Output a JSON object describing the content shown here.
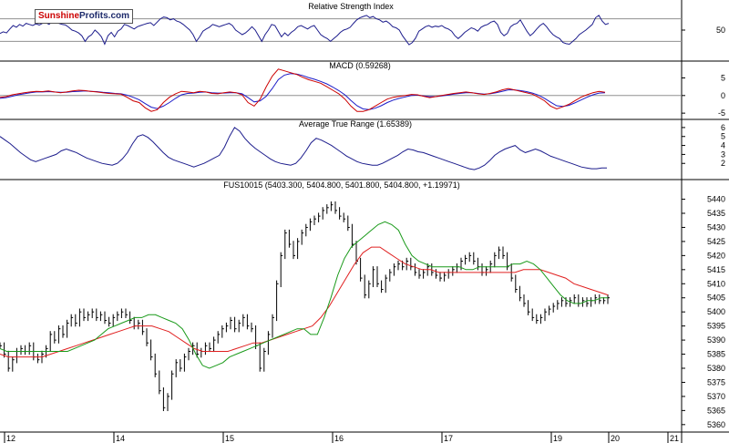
{
  "brand": {
    "name_part1": "Sunshine",
    "name_part2": "Profits.com"
  },
  "colors": {
    "price": "#000000",
    "rsi": "#1c1c8c",
    "macd": "#cc0000",
    "macd_signal": "#1c1cc8",
    "atr": "#1c1c8c",
    "ma_short": "#1a9a1a",
    "ma_long": "#e02020",
    "guide": "#909090",
    "divider": "#000000",
    "grid": "#d8d8d8"
  },
  "chart_data": [
    {
      "type": "line",
      "title": "Relative Strength Index",
      "y_tick_labels": [
        "50"
      ],
      "ylim": [
        0,
        100
      ],
      "reference_lines": [
        70,
        30
      ],
      "series": [
        {
          "values": [
            44,
            47,
            45,
            52,
            58,
            55,
            60,
            57,
            62,
            60,
            58,
            61,
            59,
            62,
            63,
            60,
            66,
            64,
            62,
            60,
            59,
            55,
            50,
            48,
            45,
            40,
            30,
            38,
            42,
            50,
            45,
            38,
            25,
            40,
            46,
            38,
            48,
            52,
            60,
            58,
            55,
            52,
            56,
            58,
            60,
            62,
            63,
            58,
            64,
            70,
            73,
            72,
            68,
            70,
            66,
            64,
            60,
            55,
            50,
            42,
            30,
            38,
            48,
            52,
            55,
            60,
            58,
            56,
            58,
            60,
            62,
            58,
            50,
            46,
            42,
            45,
            50,
            56,
            50,
            40,
            30,
            42,
            50,
            60,
            58,
            48,
            38,
            45,
            40,
            46,
            50,
            56,
            58,
            55,
            52,
            56,
            58,
            50,
            42,
            38,
            35,
            30,
            35,
            40,
            46,
            50,
            52,
            55,
            62,
            68,
            72,
            74,
            76,
            72,
            74,
            70,
            68,
            64,
            66,
            62,
            56,
            54,
            50,
            40,
            32,
            24,
            28,
            36,
            48,
            52,
            56,
            58,
            55,
            57,
            56,
            58,
            54,
            52,
            48,
            40,
            35,
            40,
            46,
            50,
            54,
            52,
            48,
            55,
            58,
            60,
            64,
            66,
            60,
            46,
            40,
            44,
            56,
            60,
            62,
            68,
            58,
            48,
            40,
            45,
            52,
            58,
            62,
            56,
            48,
            42,
            38,
            35,
            28,
            26,
            25,
            30,
            35,
            42,
            46,
            50,
            55,
            60,
            72,
            76,
            66,
            60,
            62
          ]
        }
      ]
    },
    {
      "type": "line",
      "title": "MACD (0.59268)",
      "y_tick_labels": [
        "5",
        "0",
        "-5"
      ],
      "ylim": [
        -6,
        9
      ],
      "series": [
        {
          "values": [
            -0.5,
            -0.3,
            0.2,
            0.5,
            0.8,
            1.0,
            1.2,
            1.1,
            1.3,
            1.0,
            0.8,
            1.0,
            1.3,
            1.5,
            1.4,
            1.2,
            1.0,
            0.8,
            0.6,
            0.5,
            0.4,
            -0.5,
            -1.5,
            -2.0,
            -3.5,
            -4.5,
            -4.0,
            -2.0,
            -0.5,
            0.5,
            1.2,
            1.0,
            0.8,
            1.2,
            1.0,
            0.6,
            0.5,
            0.8,
            1.0,
            0.8,
            0.2,
            -2.0,
            -3.0,
            -1.0,
            2.5,
            5.5,
            7.5,
            7.0,
            6.5,
            6.0,
            5.2,
            4.5,
            4.0,
            3.5,
            2.5,
            1.5,
            0.5,
            -1.0,
            -3.0,
            -4.5,
            -4.5,
            -4.0,
            -3.0,
            -2.0,
            -1.0,
            -0.5,
            -0.2,
            0.0,
            0.3,
            0.2,
            -0.2,
            -0.6,
            -0.3,
            0.0,
            0.3,
            0.6,
            0.8,
            1.0,
            0.8,
            0.5,
            0.3,
            0.6,
            1.0,
            1.6,
            2.0,
            1.6,
            1.2,
            0.8,
            0.4,
            -0.5,
            -1.5,
            -3.0,
            -3.8,
            -3.2,
            -2.5,
            -1.5,
            -0.5,
            0.2,
            0.8,
            1.2,
            0.9
          ]
        },
        {
          "values": [
            -0.8,
            -0.6,
            -0.2,
            0.2,
            0.5,
            0.8,
            1.0,
            1.0,
            1.1,
            1.0,
            0.9,
            0.9,
            1.1,
            1.2,
            1.3,
            1.2,
            1.1,
            0.9,
            0.8,
            0.6,
            0.5,
            0.1,
            -0.5,
            -1.2,
            -2.3,
            -3.3,
            -3.7,
            -3.0,
            -2.0,
            -0.8,
            0.2,
            0.6,
            0.7,
            0.9,
            1.0,
            0.8,
            0.7,
            0.7,
            0.8,
            0.8,
            0.5,
            -0.6,
            -1.8,
            -1.5,
            -0.2,
            2.0,
            4.5,
            5.8,
            6.2,
            6.1,
            5.7,
            5.1,
            4.6,
            4.0,
            3.3,
            2.4,
            1.4,
            0.2,
            -1.4,
            -2.9,
            -3.8,
            -4.0,
            -3.6,
            -2.9,
            -2.0,
            -1.3,
            -0.8,
            -0.4,
            0.0,
            0.1,
            -0.1,
            -0.3,
            -0.3,
            -0.1,
            0.1,
            0.4,
            0.6,
            0.8,
            0.8,
            0.6,
            0.4,
            0.5,
            0.8,
            1.2,
            1.6,
            1.6,
            1.4,
            1.1,
            0.7,
            0.1,
            -0.8,
            -1.9,
            -2.9,
            -3.1,
            -2.8,
            -2.1,
            -1.3,
            -0.5,
            0.2,
            0.7,
            0.8
          ]
        }
      ]
    },
    {
      "type": "line",
      "title": "Average True Range (1.65389)",
      "y_tick_labels": [
        "6",
        "5",
        "4",
        "3",
        "2"
      ],
      "ylim": [
        0.5,
        6.6
      ],
      "series": [
        {
          "values": [
            5.0,
            4.6,
            4.2,
            3.7,
            3.2,
            2.8,
            2.4,
            2.2,
            2.4,
            2.6,
            2.8,
            3.0,
            3.4,
            3.6,
            3.4,
            3.2,
            2.9,
            2.6,
            2.4,
            2.2,
            2.0,
            1.9,
            1.8,
            2.0,
            2.5,
            3.2,
            4.2,
            5.0,
            5.2,
            4.9,
            4.4,
            3.8,
            3.2,
            2.7,
            2.4,
            2.2,
            2.0,
            1.8,
            1.6,
            1.8,
            2.0,
            2.3,
            2.6,
            2.9,
            3.8,
            5.0,
            6.0,
            5.6,
            4.8,
            4.2,
            3.7,
            3.3,
            2.9,
            2.5,
            2.2,
            2.0,
            1.9,
            1.8,
            2.0,
            2.6,
            3.4,
            4.3,
            4.8,
            4.6,
            4.3,
            4.0,
            3.6,
            3.2,
            2.8,
            2.5,
            2.2,
            2.0,
            1.9,
            1.8,
            1.8,
            2.0,
            2.3,
            2.6,
            2.9,
            3.3,
            3.6,
            3.5,
            3.3,
            3.2,
            3.0,
            2.8,
            2.6,
            2.4,
            2.2,
            2.0,
            1.8,
            1.6,
            1.4,
            1.3,
            1.5,
            1.8,
            2.3,
            2.9,
            3.3,
            3.6,
            3.8,
            4.0,
            3.5,
            3.2,
            3.4,
            3.6,
            3.4,
            3.1,
            2.8,
            2.6,
            2.4,
            2.2,
            2.0,
            1.8,
            1.6,
            1.5,
            1.4,
            1.4,
            1.5,
            1.5
          ]
        }
      ]
    },
    {
      "type": "line",
      "title": "FUS10015 (5403.300, 5404.800, 5401.800, 5404.800, +1.19971)",
      "y_tick_labels": [
        "5440",
        "5435",
        "5430",
        "5425",
        "5420",
        "5415",
        "5410",
        "5405",
        "5400",
        "5395",
        "5390",
        "5385",
        "5380",
        "5375",
        "5370",
        "5365",
        "5360"
      ],
      "x_tick_labels": [
        "12",
        "14",
        "15",
        "16",
        "17",
        "19",
        "20",
        "21"
      ],
      "x_tick_positions": [
        0,
        2,
        3,
        4,
        5,
        6,
        6.5,
        7.1
      ],
      "xlim": [
        0,
        7.3
      ],
      "ylim": [
        5358,
        5446
      ],
      "series": [
        {
          "values": [
            5388,
            5385,
            5380,
            5383,
            5386,
            5387,
            5386,
            5388,
            5384,
            5383,
            5385,
            5387,
            5392,
            5390,
            5394,
            5392,
            5396,
            5398,
            5396,
            5400,
            5398,
            5399,
            5400,
            5398,
            5399,
            5397,
            5396,
            5398,
            5399,
            5400,
            5399,
            5397,
            5395,
            5396,
            5393,
            5389,
            5384,
            5378,
            5372,
            5366,
            5370,
            5378,
            5382,
            5380,
            5384,
            5386,
            5388,
            5385,
            5386,
            5388,
            5387,
            5390,
            5392,
            5394,
            5395,
            5397,
            5394,
            5396,
            5398,
            5395,
            5394,
            5388,
            5380,
            5386,
            5392,
            5398,
            5410,
            5420,
            5428,
            5424,
            5420,
            5425,
            5428,
            5430,
            5432,
            5433,
            5434,
            5436,
            5437,
            5438,
            5436,
            5434,
            5433,
            5430,
            5424,
            5418,
            5412,
            5406,
            5410,
            5415,
            5410,
            5408,
            5412,
            5414,
            5416,
            5417,
            5416,
            5418,
            5416,
            5414,
            5413,
            5414,
            5416,
            5414,
            5413,
            5412,
            5413,
            5414,
            5415,
            5416,
            5418,
            5419,
            5420,
            5418,
            5416,
            5414,
            5415,
            5417,
            5420,
            5422,
            5420,
            5416,
            5412,
            5408,
            5405,
            5403,
            5400,
            5398,
            5397,
            5398,
            5400,
            5401,
            5402,
            5403,
            5404,
            5403,
            5404,
            5405,
            5403,
            5404,
            5403,
            5404,
            5405,
            5404,
            5404,
            5405
          ]
        },
        {
          "values": [
            5387,
            5386,
            5386,
            5386,
            5386,
            5386,
            5386,
            5386,
            5386,
            5386,
            5386,
            5387,
            5388,
            5389,
            5390,
            5392,
            5394,
            5395,
            5396,
            5397,
            5398,
            5398,
            5399,
            5399,
            5398,
            5397,
            5396,
            5394,
            5390,
            5385,
            5381,
            5380,
            5381,
            5382,
            5384,
            5385,
            5386,
            5387,
            5388,
            5389,
            5390,
            5391,
            5392,
            5393,
            5394,
            5394,
            5392,
            5392,
            5398,
            5405,
            5413,
            5419,
            5423,
            5425,
            5427,
            5429,
            5431,
            5432,
            5431,
            5429,
            5424,
            5420,
            5418,
            5417,
            5416,
            5416,
            5416,
            5416,
            5416,
            5415,
            5415,
            5416,
            5416,
            5416,
            5416,
            5416,
            5417,
            5417,
            5418,
            5417,
            5415,
            5412,
            5409,
            5406,
            5404,
            5403,
            5403,
            5404,
            5404,
            5405,
            5405
          ]
        },
        {
          "values": [
            5385,
            5384,
            5384,
            5384,
            5384,
            5384,
            5385,
            5386,
            5387,
            5388,
            5389,
            5390,
            5391,
            5392,
            5393,
            5394,
            5395,
            5395,
            5395,
            5394,
            5393,
            5391,
            5389,
            5387,
            5386,
            5386,
            5386,
            5386,
            5387,
            5388,
            5389,
            5389,
            5390,
            5391,
            5392,
            5393,
            5394,
            5395,
            5398,
            5402,
            5407,
            5412,
            5417,
            5421,
            5423,
            5423,
            5421,
            5419,
            5417,
            5416,
            5415,
            5415,
            5414,
            5414,
            5414,
            5414,
            5414,
            5414,
            5414,
            5414,
            5414,
            5414,
            5415,
            5415,
            5415,
            5414,
            5413,
            5412,
            5410,
            5409,
            5408,
            5407,
            5406
          ]
        }
      ]
    }
  ]
}
